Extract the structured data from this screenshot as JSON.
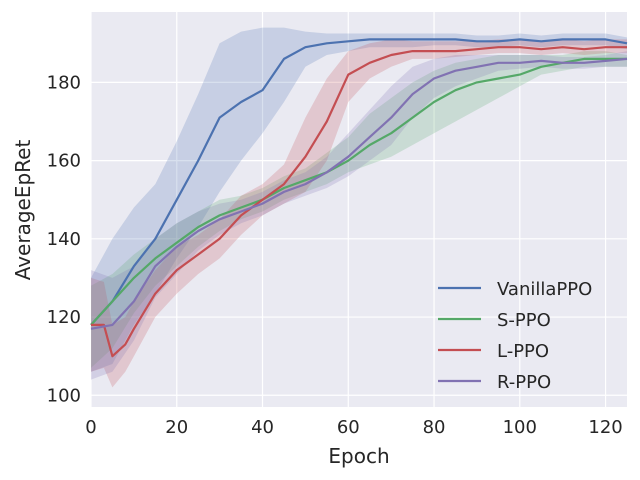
{
  "chart_data": {
    "type": "line",
    "title": "",
    "xlabel": "Epoch",
    "ylabel": "AverageEpRet",
    "xlim": [
      0,
      125
    ],
    "ylim": [
      97,
      198
    ],
    "xticks": [
      "0",
      "20",
      "40",
      "60",
      "80",
      "100",
      "120"
    ],
    "yticks": [
      "100",
      "120",
      "140",
      "160",
      "180"
    ],
    "grid": true,
    "legend_position": "lower-right",
    "series": [
      {
        "name": "VanillaPPO",
        "color": "#4c72b0",
        "x": [
          0,
          5,
          10,
          15,
          20,
          25,
          30,
          35,
          40,
          45,
          50,
          55,
          60,
          65,
          70,
          75,
          80,
          85,
          90,
          95,
          100,
          105,
          110,
          115,
          120,
          125
        ],
        "y": [
          118,
          124,
          133,
          140,
          150,
          160,
          171,
          175,
          178,
          186,
          189,
          190,
          190.5,
          191,
          191,
          191,
          191,
          191,
          190.5,
          190.5,
          191,
          190.5,
          191,
          191,
          191,
          190
        ],
        "lower": [
          106,
          108,
          118,
          126,
          135,
          143,
          152,
          160,
          167,
          175,
          184,
          187,
          188,
          189,
          189,
          189,
          189.5,
          189.5,
          189,
          189,
          189.5,
          189,
          189.5,
          189.5,
          189.5,
          188.5
        ],
        "upper": [
          130,
          140,
          148,
          154,
          165,
          177,
          190,
          193,
          194,
          194,
          193,
          192.5,
          192.5,
          192.5,
          192.5,
          192.5,
          192.5,
          192.5,
          192,
          192,
          192.5,
          192,
          192.5,
          192.5,
          192.5,
          191.5
        ]
      },
      {
        "name": "S-PPO",
        "color": "#55a868",
        "x": [
          0,
          5,
          10,
          15,
          20,
          25,
          30,
          35,
          40,
          45,
          50,
          55,
          60,
          65,
          70,
          75,
          80,
          85,
          90,
          95,
          100,
          105,
          110,
          115,
          120,
          125
        ],
        "y": [
          118,
          124,
          130,
          135,
          139,
          143,
          146,
          148,
          150,
          153,
          155,
          157,
          160,
          164,
          167,
          171,
          175,
          178,
          180,
          181,
          182,
          184,
          185,
          186,
          186,
          186
        ],
        "lower": [
          107,
          112,
          121,
          128,
          133,
          138,
          142,
          145,
          147,
          150,
          152,
          154,
          157,
          159,
          161,
          164,
          167,
          170,
          173,
          176,
          179,
          182,
          183,
          184,
          184,
          184
        ],
        "upper": [
          128,
          131,
          136,
          140,
          144,
          147,
          150,
          151,
          153,
          156,
          158,
          162,
          166,
          172,
          176,
          180,
          183,
          185,
          186,
          187,
          187,
          187,
          187,
          188,
          188,
          187
        ]
      },
      {
        "name": "L-PPO",
        "color": "#c44e52",
        "x": [
          0,
          3,
          5,
          8,
          10,
          15,
          20,
          25,
          30,
          35,
          40,
          45,
          50,
          55,
          60,
          65,
          70,
          75,
          80,
          85,
          90,
          95,
          100,
          105,
          110,
          115,
          120,
          125
        ],
        "y": [
          118,
          118,
          110,
          113,
          117,
          126,
          132,
          136,
          140,
          146,
          150,
          154,
          161,
          170,
          182,
          185,
          187,
          188,
          188,
          188,
          188.5,
          189,
          189,
          188.5,
          189,
          188.5,
          189,
          189
        ],
        "lower": [
          106,
          107,
          102,
          106,
          110,
          120,
          126,
          131,
          135,
          141,
          146,
          149,
          152,
          160,
          175,
          181,
          184,
          186,
          186,
          186.5,
          187,
          187.5,
          187.5,
          187,
          187.5,
          187,
          187.5,
          187.5
        ],
        "upper": [
          130,
          129,
          118,
          120,
          124,
          132,
          138,
          141,
          145,
          151,
          154,
          159,
          171,
          181,
          188,
          190,
          191,
          190.5,
          190.5,
          190.5,
          190.5,
          191,
          191,
          190.5,
          191,
          190.5,
          191,
          191
        ]
      },
      {
        "name": "R-PPO",
        "color": "#8172b2",
        "x": [
          0,
          5,
          10,
          15,
          20,
          25,
          30,
          35,
          40,
          45,
          50,
          55,
          60,
          65,
          70,
          75,
          80,
          85,
          90,
          95,
          100,
          105,
          110,
          115,
          120,
          125
        ],
        "y": [
          117,
          118,
          124,
          133,
          138,
          142,
          145,
          147,
          149,
          152,
          154,
          157,
          161,
          166,
          171,
          177,
          181,
          183,
          184,
          185,
          185,
          185.5,
          185,
          185,
          185.5,
          186
        ],
        "lower": [
          104,
          106,
          114,
          125,
          131,
          137,
          141,
          144,
          146,
          149,
          151,
          153,
          156,
          160,
          164,
          171,
          176,
          179,
          181,
          183,
          183.5,
          184,
          183.5,
          183.5,
          184,
          184
        ],
        "upper": [
          132,
          130,
          133,
          140,
          144,
          147,
          149,
          150,
          152,
          155,
          157,
          161,
          167,
          173,
          179,
          184,
          186,
          187,
          187,
          187,
          187,
          187,
          186.5,
          186.5,
          187,
          188
        ]
      }
    ]
  }
}
